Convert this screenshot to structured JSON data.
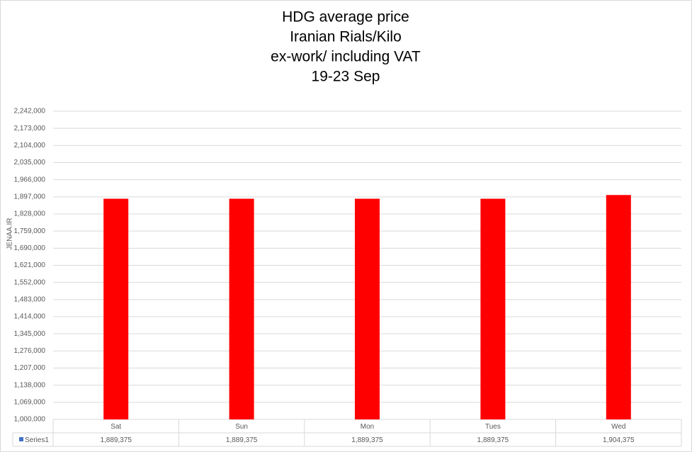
{
  "chart_data": {
    "type": "bar",
    "title_lines": [
      "HDG average price",
      "Iranian Rials/Kilo",
      "ex-work/ including VAT",
      "19-23 Sep"
    ],
    "y_label": "JENAA.IR",
    "categories": [
      "Sat",
      "Sun",
      "Mon",
      "Tues",
      "Wed"
    ],
    "series": [
      {
        "name": "Series1",
        "color": "#ff0000",
        "legend_key_color": "#4472c4",
        "values": [
          1889375,
          1889375,
          1889375,
          1889375,
          1904375
        ],
        "value_labels": [
          "1,889,375",
          "1,889,375",
          "1,889,375",
          "1,889,375",
          "1,904,375"
        ]
      }
    ],
    "ylim": [
      1000000,
      2242000
    ],
    "yticks": [
      {
        "value": 1000000,
        "label": "1,000,000"
      },
      {
        "value": 1069000,
        "label": "1,069,000"
      },
      {
        "value": 1138000,
        "label": "1,138,000"
      },
      {
        "value": 1207000,
        "label": "1,207,000"
      },
      {
        "value": 1276000,
        "label": "1,276,000"
      },
      {
        "value": 1345000,
        "label": "1,345,000"
      },
      {
        "value": 1414000,
        "label": "1,414,000"
      },
      {
        "value": 1483000,
        "label": "1,483,000"
      },
      {
        "value": 1552000,
        "label": "1,552,000"
      },
      {
        "value": 1621000,
        "label": "1,621,000"
      },
      {
        "value": 1690000,
        "label": "1,690,000"
      },
      {
        "value": 1759000,
        "label": "1,759,000"
      },
      {
        "value": 1828000,
        "label": "1,828,000"
      },
      {
        "value": 1897000,
        "label": "1,897,000"
      },
      {
        "value": 1966000,
        "label": "1,966,000"
      },
      {
        "value": 2035000,
        "label": "2,035,000"
      },
      {
        "value": 2104000,
        "label": "2,104,000"
      },
      {
        "value": 2173000,
        "label": "2,173,000"
      },
      {
        "value": 2242000,
        "label": "2,242,000"
      }
    ],
    "grid": true
  }
}
